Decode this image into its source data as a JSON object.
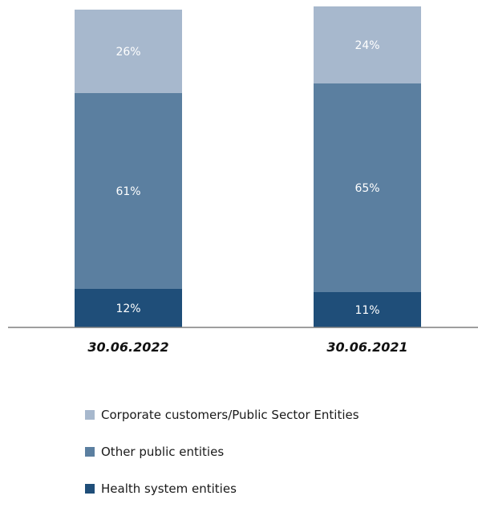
{
  "chart_data": {
    "type": "bar",
    "stacked": true,
    "categories": [
      "30.06.2022",
      "30.06.2021"
    ],
    "series": [
      {
        "name": "Health system entities",
        "values": [
          12,
          11
        ],
        "labels": [
          "12%",
          "11%"
        ],
        "color": "#1f4e79"
      },
      {
        "name": "Other public entities",
        "values": [
          61,
          65
        ],
        "labels": [
          "61%",
          "65%"
        ],
        "color": "#5b7fa0"
      },
      {
        "name": "Corporate customers/Public Sector Entities",
        "values": [
          26,
          24
        ],
        "labels": [
          "26%",
          "24%"
        ],
        "color": "#a7b8cd"
      }
    ],
    "unit": "%",
    "ylim": [
      0,
      100
    ],
    "grid": false,
    "legend_position": "bottom"
  }
}
